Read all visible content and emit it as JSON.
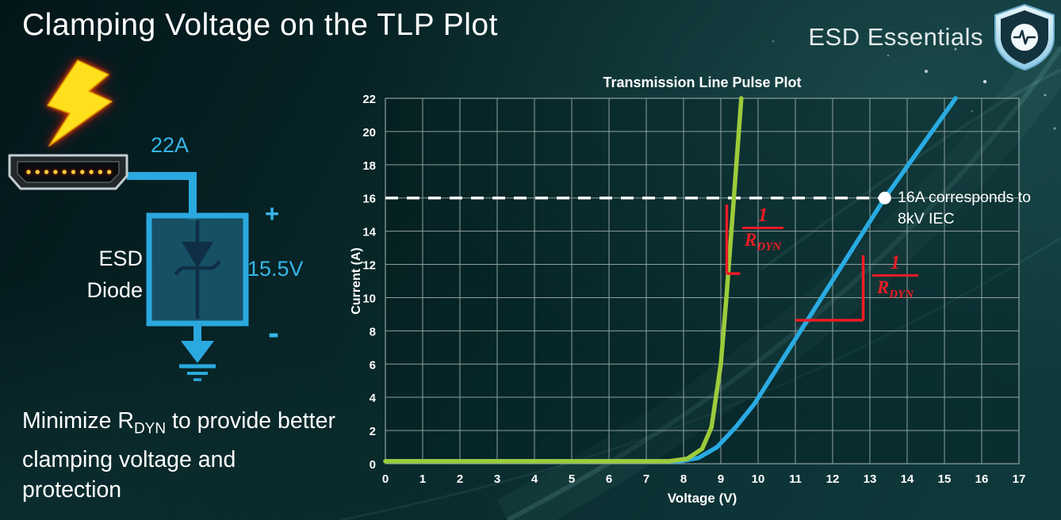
{
  "header": {
    "title": "Clamping Voltage on the TLP Plot",
    "brand": "ESD Essentials"
  },
  "diagram": {
    "surge_current": "22A",
    "device_line1": "ESD",
    "device_line2": "Diode",
    "plus": "+",
    "clamp_voltage": "15.5V",
    "minus": "-"
  },
  "note": {
    "pre": "Minimize R",
    "sub": "DYN",
    "post": " to provide better clamping voltage and protection"
  },
  "colors": {
    "accent_cyan": "#2aa9df",
    "curve_green": "#9ccb3b",
    "curve_blue": "#29abe2",
    "annotation_red": "#ed1c24"
  },
  "chart_data": {
    "type": "line",
    "title": "Transmission Line Pulse Plot",
    "xlabel": "Voltage (V)",
    "ylabel": "Current (A)",
    "xlim": [
      0,
      17
    ],
    "ylim": [
      0,
      22
    ],
    "grid": true,
    "x_ticks": [
      0,
      1,
      2,
      3,
      4,
      5,
      6,
      7,
      8,
      9,
      10,
      11,
      12,
      13,
      14,
      15,
      16,
      17
    ],
    "y_ticks": [
      0,
      2,
      4,
      6,
      8,
      10,
      12,
      14,
      16,
      18,
      20,
      22
    ],
    "series": [
      {
        "name": "high-rdyn-esd-diode",
        "color": "#29abe2",
        "points": [
          [
            0,
            0.15
          ],
          [
            7.9,
            0.15
          ],
          [
            8.4,
            0.35
          ],
          [
            8.9,
            1.0
          ],
          [
            9.4,
            2.2
          ],
          [
            9.9,
            3.6
          ],
          [
            13.4,
            16
          ],
          [
            15.3,
            22
          ]
        ]
      },
      {
        "name": "low-rdyn-esd-diode",
        "color": "#9ccb3b",
        "points": [
          [
            0,
            0.15
          ],
          [
            7.6,
            0.15
          ],
          [
            8.1,
            0.3
          ],
          [
            8.5,
            0.9
          ],
          [
            8.75,
            2.2
          ],
          [
            9.0,
            6
          ],
          [
            9.15,
            10
          ],
          [
            9.3,
            14.5
          ],
          [
            9.45,
            19
          ],
          [
            9.55,
            22
          ]
        ]
      }
    ],
    "reference_line": {
      "y": 16,
      "x_start": 0,
      "x_end": 13.4,
      "color": "#ffffff",
      "style": "dashed"
    },
    "marker_point": {
      "x": 13.4,
      "y": 16,
      "color": "#ffffff"
    },
    "annotations": [
      {
        "id": "iec-note",
        "text": "16A corresponds to 8kV IEC",
        "x": 13.7,
        "y": 16
      },
      {
        "id": "rdyn-slope-green",
        "numerator": "1",
        "denominator": "R",
        "denominator_sub": "DYN"
      },
      {
        "id": "rdyn-slope-blue",
        "numerator": "1",
        "denominator": "R",
        "denominator_sub": "DYN"
      }
    ],
    "slope_markers": [
      {
        "series": "low-rdyn-esd-diode",
        "lines": [
          [
            9.16,
            11.45,
            9.16,
            15.6
          ],
          [
            9.16,
            11.45,
            9.52,
            11.45
          ]
        ]
      },
      {
        "series": "high-rdyn-esd-diode",
        "lines": [
          [
            11.0,
            8.64,
            12.82,
            8.64
          ],
          [
            12.82,
            8.64,
            12.82,
            12.55
          ]
        ]
      }
    ],
    "legend": "none"
  }
}
